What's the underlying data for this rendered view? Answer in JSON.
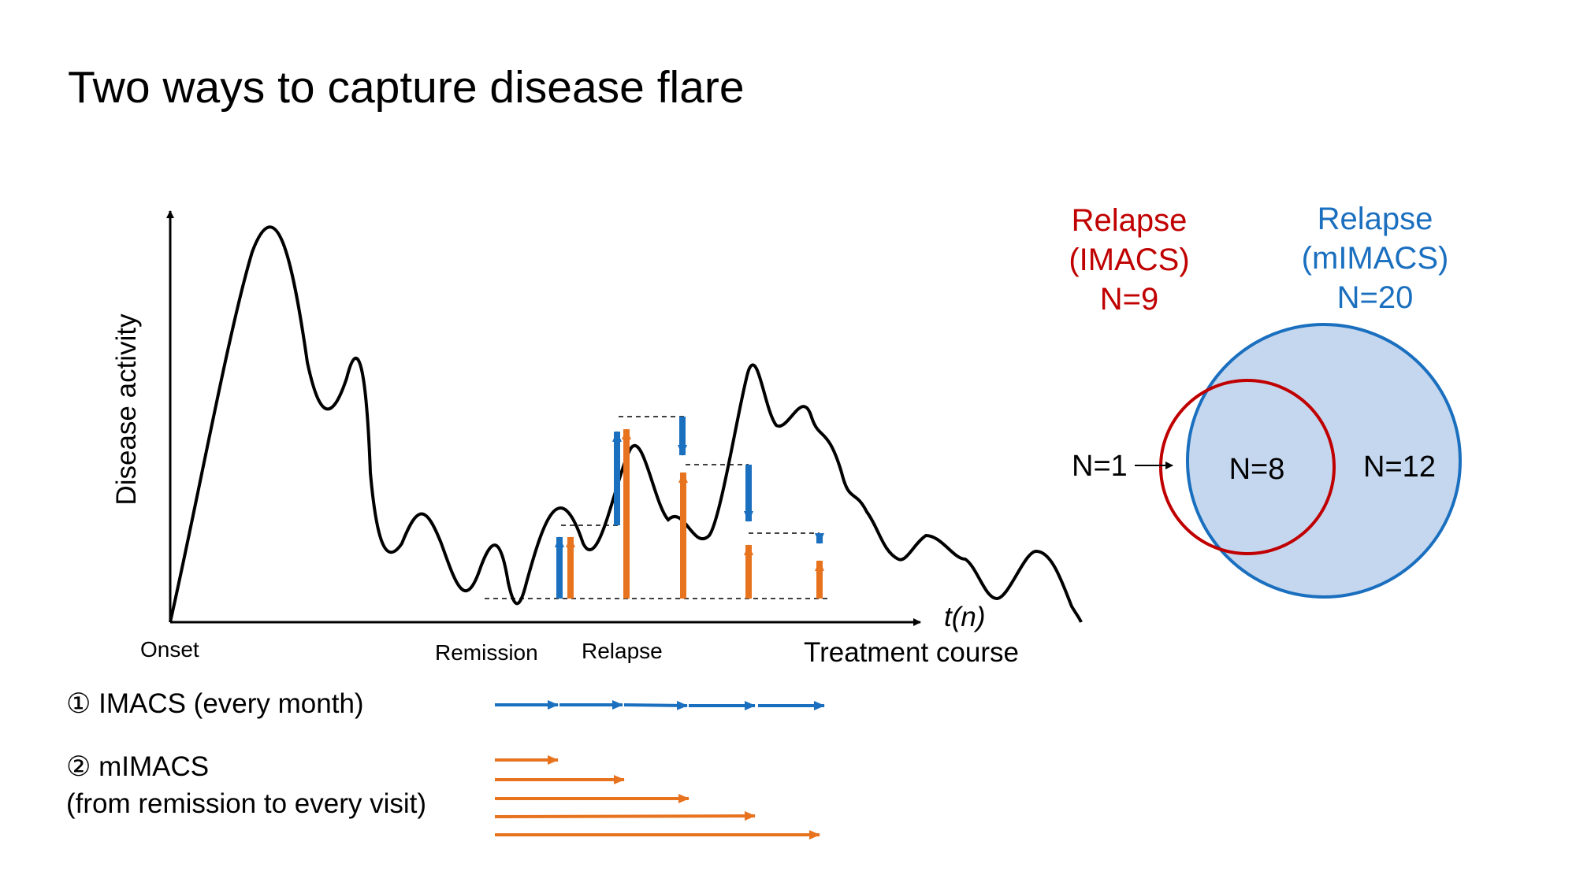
{
  "title": "Two ways to capture disease flare",
  "y_axis_label": "Disease activity",
  "x_axis_var": "t(n)",
  "x_axis_label": "Treatment course",
  "timeline_labels": {
    "onset": "Onset",
    "remission": "Remission",
    "relapse": "Relapse"
  },
  "legend": {
    "imacs": "① IMACS (every month)",
    "mimacs_line1": "② mIMACS",
    "mimacs_line2": "(from remission to every visit)"
  },
  "venn": {
    "imacs_title": [
      "Relapse",
      "(IMACS)",
      "N=9"
    ],
    "mimacs_title": [
      "Relapse",
      "(mIMACS)",
      "N=20"
    ],
    "only_imacs": "N=1",
    "overlap": "N=8",
    "only_mimacs": "N=12"
  },
  "colors": {
    "imacs": "#1a6fbf",
    "mimacs": "#e8731f",
    "imacs_circle": "#c00000",
    "mimacs_fill": "#c5d7ee"
  }
}
